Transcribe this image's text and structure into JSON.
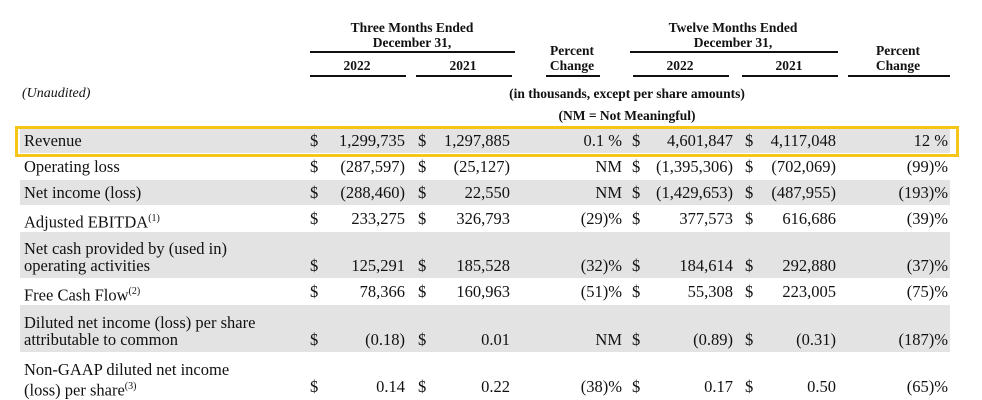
{
  "header": {
    "three_months": [
      "Three Months Ended",
      "December 31,"
    ],
    "twelve_months": [
      "Twelve Months Ended",
      "December 31,"
    ],
    "percent_change_1": [
      "Percent",
      "Change"
    ],
    "percent_change_2": [
      "Percent",
      "Change"
    ],
    "years": [
      "2022",
      "2021",
      "2022",
      "2021"
    ],
    "unaudited": "(Unaudited)",
    "units": "(in thousands, except per share amounts)",
    "nm_note": "(NM = Not Meaningful)"
  },
  "table": {
    "rows": [
      {
        "label": [
          "Revenue"
        ],
        "cells": [
          {
            "sign": "$",
            "amount": "1,299,735"
          },
          {
            "sign": "$",
            "amount": "1,297,885"
          },
          "0.1 %",
          {
            "sign": "$",
            "amount": "4,601,847"
          },
          {
            "sign": "$",
            "amount": "4,117,048"
          },
          "12 %"
        ]
      },
      {
        "label": [
          "Operating loss"
        ],
        "cells": [
          {
            "sign": "$",
            "amount": "(287,597)"
          },
          {
            "sign": "$",
            "amount": "(25,127)"
          },
          "NM",
          {
            "sign": "$",
            "amount": "(1,395,306)"
          },
          {
            "sign": "$",
            "amount": "(702,069)"
          },
          "(99)%"
        ]
      },
      {
        "label": [
          "Net income (loss)"
        ],
        "cells": [
          {
            "sign": "$",
            "amount": "(288,460)"
          },
          {
            "sign": "$",
            "amount": "22,550"
          },
          "NM",
          {
            "sign": "$",
            "amount": "(1,429,653)"
          },
          {
            "sign": "$",
            "amount": "(487,955)"
          },
          "(193)%"
        ]
      },
      {
        "label": [
          "Adjusted EBITDA"
        ],
        "note": "(1)",
        "cells": [
          {
            "sign": "$",
            "amount": "233,275"
          },
          {
            "sign": "$",
            "amount": "326,793"
          },
          "(29)%",
          {
            "sign": "$",
            "amount": "377,573"
          },
          {
            "sign": "$",
            "amount": "616,686"
          },
          "(39)%"
        ]
      },
      {
        "label": [
          "Net cash provided by (used in)",
          "operating activities"
        ],
        "cells": [
          {
            "sign": "$",
            "amount": "125,291"
          },
          {
            "sign": "$",
            "amount": "185,528"
          },
          "(32)%",
          {
            "sign": "$",
            "amount": "184,614"
          },
          {
            "sign": "$",
            "amount": "292,880"
          },
          "(37)%"
        ]
      },
      {
        "label": [
          "Free Cash Flow"
        ],
        "note": "(2)",
        "cells": [
          {
            "sign": "$",
            "amount": "78,366"
          },
          {
            "sign": "$",
            "amount": "160,963"
          },
          "(51)%",
          {
            "sign": "$",
            "amount": "55,308"
          },
          {
            "sign": "$",
            "amount": "223,005"
          },
          "(75)%"
        ]
      },
      {
        "label": [
          "Diluted net income (loss) per share",
          "attributable to common"
        ],
        "cells": [
          {
            "sign": "$",
            "amount": "(0.18)"
          },
          {
            "sign": "$",
            "amount": "0.01"
          },
          "NM",
          {
            "sign": "$",
            "amount": "(0.89)"
          },
          {
            "sign": "$",
            "amount": "(0.31)"
          },
          "(187)%"
        ]
      },
      {
        "label": [
          "Non-GAAP diluted net income",
          "(loss) per share"
        ],
        "note": "(3)",
        "cells": [
          {
            "sign": "$",
            "amount": "0.14"
          },
          {
            "sign": "$",
            "amount": "0.22"
          },
          "(38)%",
          {
            "sign": "$",
            "amount": "0.17"
          },
          {
            "sign": "$",
            "amount": "0.50"
          },
          "(65)%"
        ]
      }
    ]
  }
}
